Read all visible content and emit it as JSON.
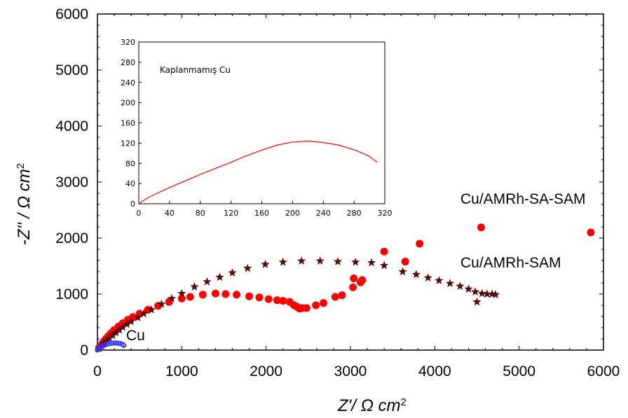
{
  "chart_data": [
    {
      "type": "scatter",
      "title": "",
      "xlabel": "Z'/ Ω cm2",
      "ylabel": "-Z'' / Ω cm2",
      "xlabel_parts": {
        "main": "Z'/ Ω cm",
        "sup": "2"
      },
      "ylabel_parts": {
        "prefix": "-",
        "main": "Z'' / Ω cm",
        "sup": "2"
      },
      "xlim": [
        0,
        6000
      ],
      "ylim": [
        0,
        6000
      ],
      "xticks": [
        0,
        1000,
        2000,
        3000,
        4000,
        5000,
        6000
      ],
      "yticks": [
        0,
        1000,
        2000,
        3000,
        4000,
        5000,
        6000
      ],
      "grid": false,
      "series": [
        {
          "name": "Cu/AMRh-SA-SAM",
          "marker": "circle",
          "color": "#ff0000",
          "points": [
            [
              20,
              40
            ],
            [
              40,
              80
            ],
            [
              60,
              120
            ],
            [
              80,
              160
            ],
            [
              100,
              200
            ],
            [
              130,
              250
            ],
            [
              160,
              300
            ],
            [
              200,
              360
            ],
            [
              250,
              420
            ],
            [
              300,
              480
            ],
            [
              360,
              540
            ],
            [
              420,
              590
            ],
            [
              500,
              650
            ],
            [
              600,
              720
            ],
            [
              720,
              790
            ],
            [
              850,
              860
            ],
            [
              1000,
              920
            ],
            [
              1100,
              950
            ],
            [
              1250,
              990
            ],
            [
              1400,
              1010
            ],
            [
              1520,
              1000
            ],
            [
              1650,
              990
            ],
            [
              1800,
              960
            ],
            [
              1920,
              940
            ],
            [
              2030,
              910
            ],
            [
              2130,
              890
            ],
            [
              2200,
              880
            ],
            [
              2280,
              860
            ],
            [
              2330,
              800
            ],
            [
              2360,
              780
            ],
            [
              2380,
              760
            ],
            [
              2400,
              740
            ],
            [
              2430,
              750
            ],
            [
              2480,
              750
            ],
            [
              2590,
              800
            ],
            [
              2680,
              840
            ],
            [
              2820,
              950
            ],
            [
              2900,
              980
            ],
            [
              3030,
              1120
            ],
            [
              3040,
              1280
            ],
            [
              3120,
              1210
            ],
            [
              3140,
              1250
            ],
            [
              3400,
              1760
            ],
            [
              3650,
              1580
            ],
            [
              3820,
              1900
            ],
            [
              4550,
              2190
            ],
            [
              5850,
              2100
            ]
          ]
        },
        {
          "name": "Cu/AMRh-SAM",
          "marker": "star",
          "color": "#5a0a0a",
          "points": [
            [
              20,
              30
            ],
            [
              50,
              80
            ],
            [
              80,
              130
            ],
            [
              110,
              170
            ],
            [
              140,
              210
            ],
            [
              180,
              260
            ],
            [
              220,
              310
            ],
            [
              260,
              360
            ],
            [
              300,
              410
            ],
            [
              350,
              460
            ],
            [
              400,
              510
            ],
            [
              480,
              580
            ],
            [
              550,
              650
            ],
            [
              640,
              720
            ],
            [
              760,
              820
            ],
            [
              880,
              920
            ],
            [
              1000,
              1010
            ],
            [
              1150,
              1130
            ],
            [
              1300,
              1220
            ],
            [
              1450,
              1300
            ],
            [
              1600,
              1380
            ],
            [
              1780,
              1460
            ],
            [
              1990,
              1530
            ],
            [
              2200,
              1570
            ],
            [
              2420,
              1590
            ],
            [
              2640,
              1590
            ],
            [
              2850,
              1580
            ],
            [
              3060,
              1570
            ],
            [
              3250,
              1560
            ],
            [
              3400,
              1510
            ],
            [
              3620,
              1400
            ],
            [
              3780,
              1350
            ],
            [
              3920,
              1290
            ],
            [
              4050,
              1240
            ],
            [
              4180,
              1190
            ],
            [
              4300,
              1140
            ],
            [
              4400,
              1090
            ],
            [
              4480,
              1040
            ],
            [
              4500,
              860
            ],
            [
              4560,
              1010
            ],
            [
              4620,
              1000
            ],
            [
              4680,
              1000
            ],
            [
              4720,
              990
            ]
          ]
        },
        {
          "name": "Cu",
          "marker": "open-circle",
          "color": "#3333ff",
          "points": [
            [
              0,
              0
            ],
            [
              5,
              10
            ],
            [
              10,
              20
            ],
            [
              20,
              36
            ],
            [
              30,
              50
            ],
            [
              45,
              62
            ],
            [
              60,
              74
            ],
            [
              75,
              84
            ],
            [
              90,
              94
            ],
            [
              110,
              104
            ],
            [
              130,
              112
            ],
            [
              150,
              118
            ],
            [
              170,
              122
            ],
            [
              190,
              125
            ],
            [
              210,
              126
            ],
            [
              230,
              125
            ],
            [
              250,
              122
            ],
            [
              270,
              116
            ],
            [
              290,
              108
            ],
            [
              305,
              95
            ],
            [
              312,
              82
            ]
          ]
        }
      ],
      "annotations": [
        "Cu/AMRh-SA-SAM",
        "Cu/AMRh-SAM",
        "Cu"
      ]
    },
    {
      "type": "line",
      "title": "Kaplanmamış Cu",
      "xlabel": "",
      "ylabel": "",
      "xlim": [
        0,
        320
      ],
      "ylim": [
        0,
        320
      ],
      "xticks": [
        0,
        40,
        80,
        120,
        160,
        200,
        240,
        280,
        320
      ],
      "yticks": [
        0,
        40,
        80,
        120,
        160,
        200,
        240,
        280,
        320
      ],
      "grid": false,
      "series": [
        {
          "name": "Kaplanmamış Cu",
          "color": "#ff0000",
          "x": [
            0,
            10,
            20,
            40,
            60,
            80,
            100,
            120,
            140,
            160,
            180,
            200,
            220,
            240,
            260,
            280,
            300,
            310
          ],
          "y": [
            0,
            10,
            18,
            32,
            45,
            58,
            70,
            82,
            95,
            106,
            116,
            122,
            124,
            121,
            116,
            107,
            94,
            82
          ]
        }
      ]
    }
  ]
}
